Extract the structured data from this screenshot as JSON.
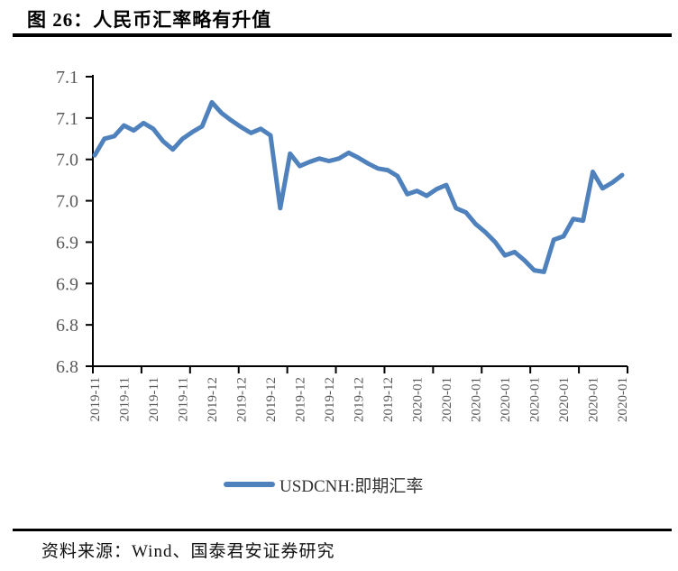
{
  "title": "图 26：人民币汇率略有升值",
  "legend": {
    "label": "USDCNH:即期汇率"
  },
  "source": "资料来源：Wind、国泰君安证券研究",
  "colors": {
    "line": "#4F81BD",
    "axis": "#000000",
    "tick_label": "#595959",
    "legend_text": "#333333"
  },
  "chart_data": {
    "type": "line",
    "title": "图 26：人民币汇率略有升值",
    "xlabel": "",
    "ylabel": "",
    "grid": false,
    "legend_position": "bottom",
    "y_axis": {
      "min": 6.75,
      "max": 7.1,
      "step": 0.05,
      "tick_labels": [
        "7.1",
        "7.1",
        "7.0",
        "7.0",
        "6.9",
        "6.9",
        "6.8",
        "6.8"
      ]
    },
    "x_tick_labels": [
      "2019-11",
      "2019-11",
      "2019-11",
      "2019-11",
      "2019-12",
      "2019-12",
      "2019-12",
      "2019-12",
      "2019-12",
      "2019-12",
      "2019-12",
      "2020-01",
      "2020-01",
      "2020-01",
      "2020-01",
      "2020-01",
      "2020-01",
      "2020-01",
      "2020-01"
    ],
    "series": [
      {
        "name": "USDCNH:即期汇率",
        "color": "#4F81BD",
        "values": [
          7.005,
          7.025,
          7.028,
          7.041,
          7.035,
          7.044,
          7.037,
          7.022,
          7.012,
          7.025,
          7.033,
          7.04,
          7.069,
          7.056,
          7.047,
          7.039,
          7.032,
          7.037,
          7.029,
          6.941,
          7.007,
          6.992,
          6.997,
          7.001,
          6.998,
          7.001,
          7.008,
          7.002,
          6.995,
          6.989,
          6.987,
          6.98,
          6.958,
          6.962,
          6.956,
          6.964,
          6.969,
          6.941,
          6.936,
          6.922,
          6.912,
          6.9,
          6.884,
          6.888,
          6.878,
          6.866,
          6.864,
          6.903,
          6.907,
          6.928,
          6.926,
          6.985,
          6.965,
          6.972,
          6.981
        ]
      }
    ]
  }
}
